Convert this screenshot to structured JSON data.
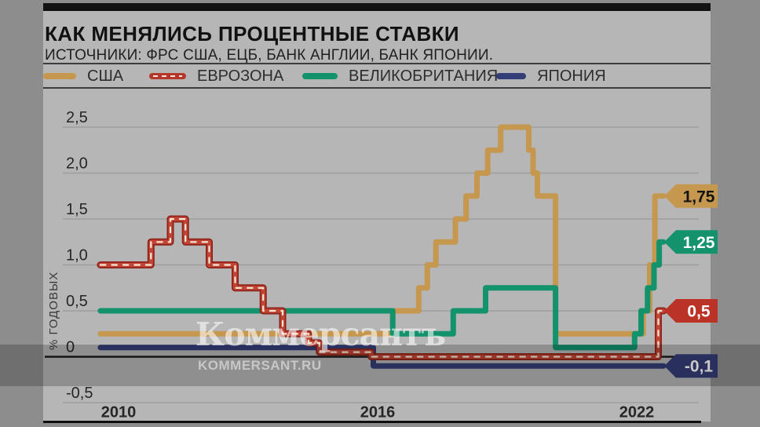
{
  "header": {
    "title": "КАК МЕНЯЛИСЬ ПРОЦЕНТНЫЕ СТАВКИ",
    "subtitle": "ИСТОЧНИКИ: ФРС США, ЕЦБ, БАНК АНГЛИИ, БАНК ЯПОНИИ."
  },
  "watermark": {
    "logo": "Коммерсантъ",
    "site": "KOMMERSANT.RU"
  },
  "colors": {
    "outer_margin": "#8d8d8d",
    "card_bg": "#b6b6b6",
    "top_bar": "#121212",
    "grid": "#9d9d9d",
    "zero_axis": "#1a1a1a",
    "frame": "#0f0f0f",
    "tick_text": "#262626"
  },
  "chart_data": {
    "type": "line",
    "step": true,
    "title": "КАК МЕНЯЛИСЬ ПРОЦЕНТНЫЕ СТАВКИ",
    "ylabel": "% ГОДОВЫХ",
    "grid": true,
    "legend_position": "top",
    "ylim": [
      -0.5,
      2.75
    ],
    "xlim": [
      2009.58,
      2022.62
    ],
    "yticks": [
      {
        "label": "2,5",
        "value": 2.5
      },
      {
        "label": "2,0",
        "value": 2.0
      },
      {
        "label": "1,5",
        "value": 1.5
      },
      {
        "label": "1,0",
        "value": 1.0
      },
      {
        "label": "0,5",
        "value": 0.5
      },
      {
        "label": "0",
        "value": 0.0
      },
      {
        "label": "-0,5",
        "value": -0.5
      }
    ],
    "xticks": [
      {
        "label": "2010",
        "value": 2010
      },
      {
        "label": "2016",
        "value": 2016
      },
      {
        "label": "2022",
        "value": 2022
      }
    ],
    "series": [
      {
        "key": "usa",
        "name": "США",
        "color": "#c6974f",
        "dashed": false,
        "end_label": "1,75",
        "end_value": 1.75,
        "badge_text_color": "#141414",
        "points": [
          [
            2009.58,
            0.25
          ],
          [
            2016.35,
            0.5
          ],
          [
            2016.95,
            0.75
          ],
          [
            2017.15,
            1.0
          ],
          [
            2017.35,
            1.25
          ],
          [
            2017.8,
            1.5
          ],
          [
            2018.05,
            1.75
          ],
          [
            2018.3,
            2.0
          ],
          [
            2018.55,
            2.25
          ],
          [
            2018.85,
            2.5
          ],
          [
            2019.5,
            2.25
          ],
          [
            2019.6,
            2.0
          ],
          [
            2019.7,
            1.75
          ],
          [
            2020.12,
            0.25
          ],
          [
            2022.15,
            0.5
          ],
          [
            2022.3,
            1.0
          ],
          [
            2022.42,
            1.75
          ]
        ]
      },
      {
        "key": "eurozone",
        "name": "ЕВРОЗОНА",
        "color": "#b5362a",
        "dashed": true,
        "edge_color": "#8d241b",
        "inner_color": "#c24434",
        "dash_color": "#f4ead9",
        "end_label": "0,5",
        "end_value": 0.5,
        "badge_text_color": "#ffffff",
        "points": [
          [
            2009.58,
            1.0
          ],
          [
            2010.75,
            1.25
          ],
          [
            2011.2,
            1.5
          ],
          [
            2011.55,
            1.25
          ],
          [
            2012.1,
            1.0
          ],
          [
            2012.7,
            0.75
          ],
          [
            2013.35,
            0.5
          ],
          [
            2013.8,
            0.25
          ],
          [
            2014.4,
            0.15
          ],
          [
            2014.65,
            0.05
          ],
          [
            2015.85,
            0.0
          ],
          [
            2022.5,
            0.5
          ]
        ]
      },
      {
        "key": "uk",
        "name": "ВЕЛИКОБРИТАНИЯ",
        "color": "#13926c",
        "dashed": false,
        "end_label": "1,25",
        "end_value": 1.25,
        "badge_text_color": "#ffffff",
        "points": [
          [
            2009.58,
            0.5
          ],
          [
            2016.35,
            0.25
          ],
          [
            2017.75,
            0.5
          ],
          [
            2018.5,
            0.75
          ],
          [
            2020.12,
            0.1
          ],
          [
            2021.95,
            0.25
          ],
          [
            2022.1,
            0.5
          ],
          [
            2022.25,
            0.75
          ],
          [
            2022.4,
            1.0
          ],
          [
            2022.52,
            1.25
          ]
        ]
      },
      {
        "key": "japan",
        "name": "ЯПОНИЯ",
        "color": "#343e76",
        "dashed": false,
        "end_label": "-0,1",
        "end_value": -0.1,
        "badge_text_color": "#ffffff",
        "points": [
          [
            2009.58,
            0.1
          ],
          [
            2015.9,
            -0.1
          ]
        ]
      }
    ]
  }
}
